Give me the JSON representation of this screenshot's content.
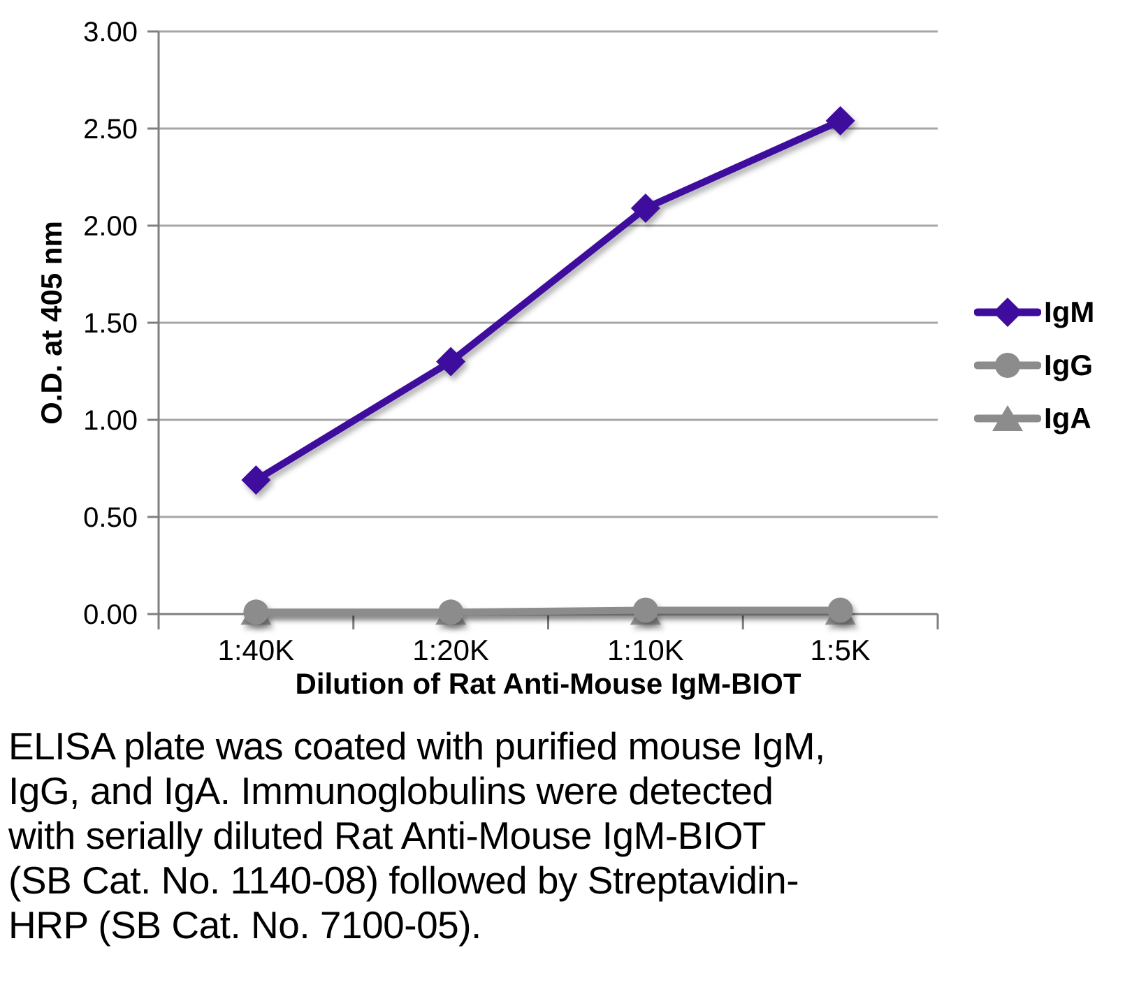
{
  "chart_data": {
    "type": "line",
    "title": "",
    "categories": [
      "1:40K",
      "1:20K",
      "1:10K",
      "1:5K"
    ],
    "series": [
      {
        "name": "IgM",
        "marker": "diamond",
        "color": "#3E0D9E",
        "values": [
          0.69,
          1.3,
          2.09,
          2.54
        ]
      },
      {
        "name": "IgG",
        "marker": "circle",
        "color": "#8C8C8C",
        "values": [
          0.01,
          0.01,
          0.02,
          0.02
        ]
      },
      {
        "name": "IgA",
        "marker": "triangle",
        "color": "#8C8C8C",
        "values": [
          0.01,
          0.01,
          0.01,
          0.01
        ]
      }
    ],
    "xlabel": "Dilution of Rat Anti-Mouse IgM-BIOT",
    "ylabel": "O.D. at 405 nm",
    "ylim": [
      0,
      3
    ],
    "ytick_step": 0.5,
    "ytick_labels": [
      "0.00",
      "0.50",
      "1.00",
      "1.50",
      "2.00",
      "2.50",
      "3.00"
    ],
    "grid": "horizontal",
    "legend_position": "right",
    "axis_color": "#7F7F7F",
    "gridline_color": "#A6A6A6",
    "text_color": "#000000"
  },
  "caption": {
    "text": "ELISA plate was coated with purified mouse IgM,\nIgG, and IgA.  Immunoglobulins were detected\nwith serially diluted Rat Anti-Mouse IgM-BIOT\n(SB Cat. No. 1140-08) followed by Streptavidin-\nHRP (SB Cat. No. 7100-05)."
  }
}
